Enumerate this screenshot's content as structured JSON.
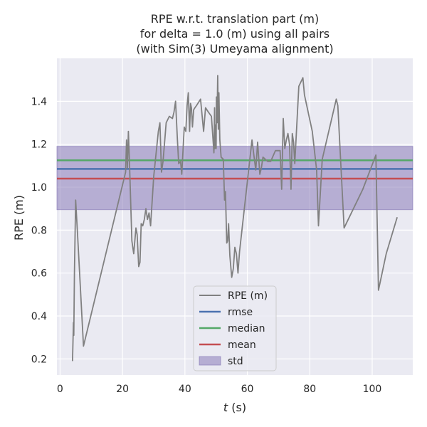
{
  "chart_data": {
    "type": "line",
    "title_lines": [
      "RPE w.r.t. translation part (m)",
      "for delta = 1.0 (m) using all pairs",
      "(with Sim(3) Umeyama alignment)"
    ],
    "xlabel_var": "t",
    "xlabel_unit": " (s)",
    "ylabel": "RPE (m)",
    "xlim": [
      -1,
      113
    ],
    "ylim": [
      0.125,
      1.6
    ],
    "x_ticks": [
      0,
      20,
      40,
      60,
      80,
      100
    ],
    "y_ticks": [
      0.2,
      0.4,
      0.6,
      0.8,
      1.0,
      1.2,
      1.4
    ],
    "grid": true,
    "legend_position": "lower center",
    "series": [
      {
        "name": "RPE (m)",
        "color": "#808080",
        "x": [
          4.0,
          4.3,
          4.4,
          4.6,
          5.0,
          5.5,
          7.5,
          21.0,
          21.3,
          21.6,
          21.9,
          22.2,
          23.0,
          23.3,
          23.6,
          23.9,
          24.3,
          24.7,
          25.2,
          25.6,
          26.0,
          26.5,
          27.0,
          27.5,
          28.0,
          28.5,
          29.0,
          30.0,
          31.5,
          32.0,
          32.5,
          33.0,
          34.0,
          35.0,
          36.0,
          36.5,
          37.0,
          37.6,
          38.0,
          38.6,
          39.0,
          39.8,
          40.3,
          40.7,
          41.1,
          41.5,
          41.8,
          42.1,
          42.4,
          42.8,
          43.2,
          43.7,
          45.0,
          46.0,
          46.6,
          47.5,
          48.5,
          49.3,
          49.5,
          49.6,
          49.8,
          50.0,
          50.1,
          50.3,
          50.5,
          50.7,
          50.9,
          51.2,
          51.6,
          52.3,
          52.7,
          53.0,
          53.4,
          53.7,
          54.0,
          54.4,
          55.0,
          55.5,
          56.0,
          56.5,
          57.0,
          57.5,
          61.5,
          62.0,
          62.7,
          63.3,
          64.0,
          64.5,
          65.0,
          66.5,
          67.5,
          69.0,
          70.5,
          71.0,
          71.5,
          72.0,
          72.5,
          73.0,
          73.5,
          74.0,
          74.4,
          74.8,
          75.2,
          76.5,
          77.8,
          78.3,
          80.8,
          82.2,
          82.8,
          84.0,
          88.5,
          89.0,
          91.0,
          97.0,
          101.2,
          102.0,
          104.5,
          108.0
        ],
        "values": [
          0.19,
          0.37,
          0.31,
          0.6,
          0.94,
          0.81,
          0.26,
          1.07,
          1.22,
          1.09,
          1.26,
          1.13,
          0.75,
          0.72,
          0.69,
          0.74,
          0.81,
          0.78,
          0.63,
          0.65,
          0.83,
          0.82,
          0.85,
          0.9,
          0.85,
          0.88,
          0.82,
          1.05,
          1.26,
          1.3,
          1.07,
          1.12,
          1.3,
          1.33,
          1.32,
          1.35,
          1.4,
          1.22,
          1.11,
          1.12,
          1.06,
          1.28,
          1.26,
          1.38,
          1.44,
          1.26,
          1.39,
          1.37,
          1.28,
          1.36,
          1.37,
          1.38,
          1.41,
          1.26,
          1.37,
          1.35,
          1.33,
          1.16,
          1.37,
          1.18,
          1.29,
          1.18,
          1.42,
          1.3,
          1.52,
          1.27,
          1.44,
          1.22,
          1.14,
          1.13,
          0.94,
          0.98,
          0.74,
          0.75,
          0.83,
          0.68,
          0.58,
          0.62,
          0.72,
          0.69,
          0.6,
          0.7,
          1.22,
          1.16,
          1.08,
          1.21,
          1.06,
          1.09,
          1.14,
          1.12,
          1.12,
          1.17,
          1.17,
          0.99,
          1.32,
          1.18,
          1.22,
          1.25,
          1.2,
          0.99,
          1.25,
          1.21,
          1.11,
          1.47,
          1.51,
          1.43,
          1.26,
          1.08,
          0.82,
          1.13,
          1.41,
          1.38,
          0.81,
          0.99,
          1.15,
          0.52,
          0.69,
          0.86
        ]
      },
      {
        "name": "rmse",
        "color": "#4c72b0",
        "value": 1.085
      },
      {
        "name": "median",
        "color": "#55a868",
        "value": 1.125
      },
      {
        "name": "mean",
        "color": "#c44e52",
        "value": 1.04
      },
      {
        "name": "std",
        "color": "#8172b3",
        "band": [
          0.895,
          1.19
        ]
      }
    ],
    "colors": {
      "plot_background": "#eaeaf2",
      "grid": "#ffffff",
      "std_fill": "#8172b3"
    }
  }
}
